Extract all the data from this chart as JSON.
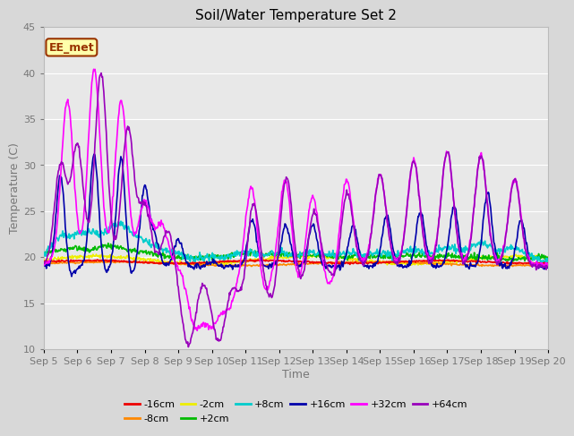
{
  "title": "Soil/Water Temperature Set 2",
  "xlabel": "Time",
  "ylabel": "Temperature (C)",
  "ylim": [
    10,
    45
  ],
  "yticks": [
    10,
    15,
    20,
    25,
    30,
    35,
    40,
    45
  ],
  "xtick_labels": [
    "Sep 5",
    "Sep 6",
    "Sep 7",
    "Sep 8",
    "Sep 9",
    "Sep 10",
    "Sep 11",
    "Sep 12",
    "Sep 13",
    "Sep 14",
    "Sep 15",
    "Sep 16",
    "Sep 17",
    "Sep 18",
    "Sep 19",
    "Sep 20"
  ],
  "fig_facecolor": "#d8d8d8",
  "plot_facecolor": "#e8e8e8",
  "annotation_text": "EE_met",
  "annotation_bg": "#ffffaa",
  "annotation_border": "#993300",
  "series_colors": {
    "-16cm": "#ee0000",
    "-8cm": "#ff8800",
    "-2cm": "#eeee00",
    "+2cm": "#00bb00",
    "+8cm": "#00cccc",
    "+16cm": "#0000aa",
    "+32cm": "#ff00ff",
    "+64cm": "#9900bb"
  },
  "grid_color": "#ffffff",
  "title_fontsize": 11,
  "label_fontsize": 9,
  "tick_fontsize": 8,
  "tick_color": "#777777"
}
